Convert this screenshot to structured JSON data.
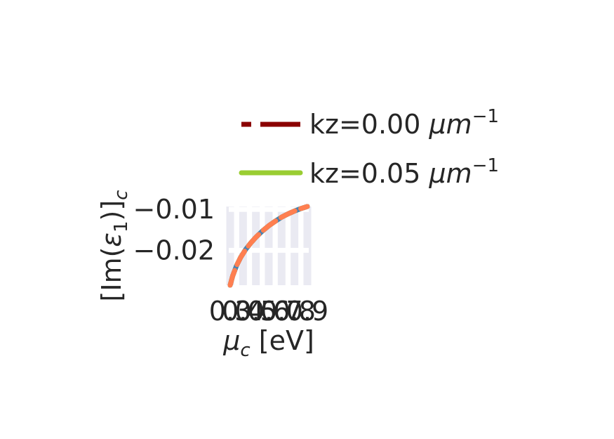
{
  "chart_data": {
    "type": "line",
    "title": "",
    "xlabel": "μ_c [eV]",
    "ylabel": "[Im(ε_1)]_c",
    "xlim": [
      0.3,
      0.9
    ],
    "ylim": [
      -0.0285,
      -0.0093
    ],
    "grid": true,
    "legend_position": "top-right",
    "x_ticks": [
      {
        "value": 0.3,
        "label": "0.3"
      },
      {
        "value": 0.4,
        "label": "0.4"
      },
      {
        "value": 0.5,
        "label": "0.5"
      },
      {
        "value": 0.6,
        "label": "0.6"
      },
      {
        "value": 0.7,
        "label": "0.7"
      },
      {
        "value": 0.8,
        "label": "0.8"
      },
      {
        "value": 0.9,
        "label": "0.9"
      }
    ],
    "y_ticks": [
      {
        "value": -0.02,
        "label": "−0.02"
      },
      {
        "value": -0.01,
        "label": "−0.01"
      }
    ],
    "series": [
      {
        "name": "kz=0.00 μm⁻¹",
        "color": "#8b0000",
        "style": "dashed",
        "x": [
          0.3,
          0.32,
          0.35,
          0.38,
          0.42,
          0.46,
          0.5,
          0.55,
          0.6,
          0.65,
          0.7,
          0.75,
          0.8,
          0.85,
          0.9
        ],
        "y": [
          -0.0285,
          -0.0262,
          -0.0237,
          -0.0218,
          -0.0198,
          -0.0182,
          -0.0168,
          -0.0153,
          -0.014,
          -0.0129,
          -0.0119,
          -0.0111,
          -0.0104,
          -0.0098,
          -0.0093
        ]
      },
      {
        "name": "kz=0.05 μm⁻¹",
        "color": "#9acd32",
        "style": "solid",
        "x": [
          0.3,
          0.32,
          0.35,
          0.38,
          0.42,
          0.46,
          0.5,
          0.55,
          0.6,
          0.65,
          0.7,
          0.75,
          0.8,
          0.85,
          0.9
        ],
        "y": [
          -0.0285,
          -0.0262,
          -0.0237,
          -0.0218,
          -0.0198,
          -0.0182,
          -0.0168,
          -0.0153,
          -0.014,
          -0.0129,
          -0.0119,
          -0.0111,
          -0.0104,
          -0.0098,
          -0.0093
        ]
      },
      {
        "color": "#4682b4",
        "style": "solid",
        "x": [
          0.3,
          0.32,
          0.35,
          0.38,
          0.42,
          0.46,
          0.5,
          0.55,
          0.6,
          0.65,
          0.7,
          0.75,
          0.8,
          0.85,
          0.9
        ],
        "y": [
          -0.0285,
          -0.0262,
          -0.0237,
          -0.0218,
          -0.0198,
          -0.0182,
          -0.0168,
          -0.0153,
          -0.014,
          -0.0129,
          -0.0119,
          -0.0111,
          -0.0104,
          -0.0098,
          -0.0093
        ]
      },
      {
        "color": "#ff7f50",
        "style": "dashed",
        "x": [
          0.3,
          0.32,
          0.35,
          0.38,
          0.42,
          0.46,
          0.5,
          0.55,
          0.6,
          0.65,
          0.7,
          0.75,
          0.8,
          0.85,
          0.9
        ],
        "y": [
          -0.0285,
          -0.0262,
          -0.0237,
          -0.0218,
          -0.0198,
          -0.0182,
          -0.0168,
          -0.0153,
          -0.014,
          -0.0129,
          -0.0119,
          -0.0111,
          -0.0104,
          -0.0098,
          -0.0093
        ]
      }
    ],
    "background_color": "#ffffff",
    "grid_color": "#eaeaf2"
  }
}
